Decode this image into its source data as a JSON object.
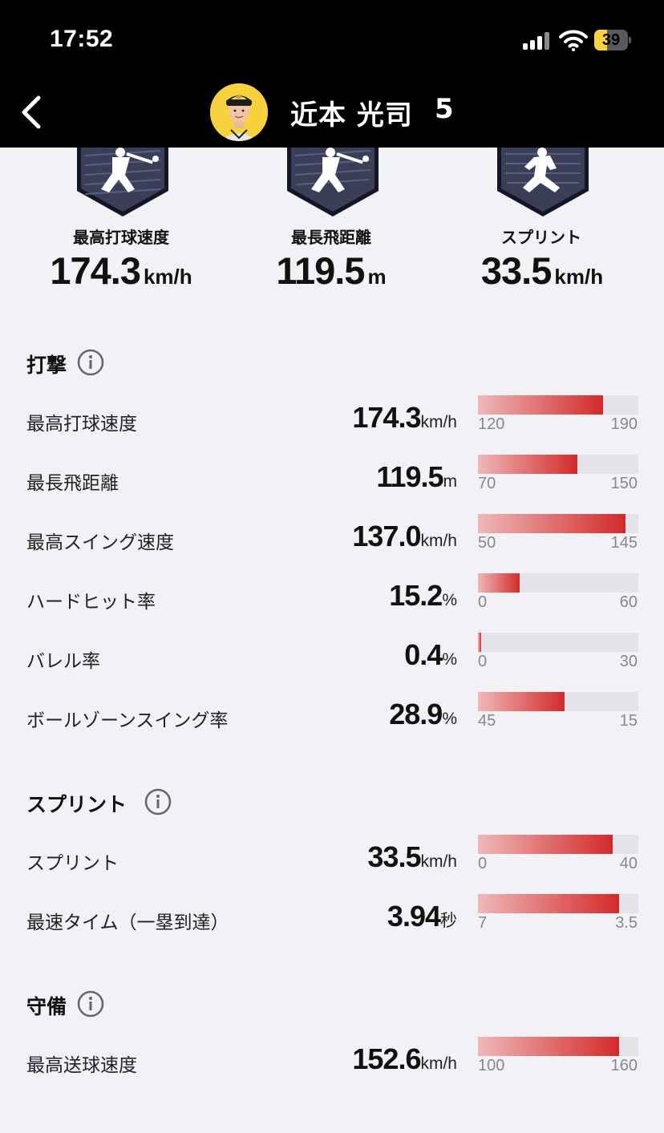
{
  "status_bar": {
    "time": "17:52",
    "battery": "39",
    "battery_level": 0.39
  },
  "header": {
    "back_icon": "chevron-left-icon",
    "player_name": "近本 光司",
    "player_number": "5"
  },
  "highlights": [
    {
      "label": "最高打球速度",
      "value": "174.3",
      "unit": "km/h",
      "icon": "batter-swing-badge"
    },
    {
      "label": "最長飛距離",
      "value": "119.5",
      "unit": "m",
      "icon": "batter-swing-badge"
    },
    {
      "label": "スプリント",
      "value": "33.5",
      "unit": "km/h",
      "icon": "runner-badge"
    }
  ],
  "sections": {
    "batting": {
      "title": "打撃",
      "rows": [
        {
          "label": "最高打球速度",
          "value": "174.3",
          "unit": "km/h",
          "min": "120",
          "max": "190",
          "fill": 0.78
        },
        {
          "label": "最長飛距離",
          "value": "119.5",
          "unit": "m",
          "min": "70",
          "max": "150",
          "fill": 0.62
        },
        {
          "label": "最高スイング速度",
          "value": "137.0",
          "unit": "km/h",
          "min": "50",
          "max": "145",
          "fill": 0.92
        },
        {
          "label": "ハードヒット率",
          "value": "15.2",
          "unit": "%",
          "min": "0",
          "max": "60",
          "fill": 0.26
        },
        {
          "label": "バレル率",
          "value": "0.4",
          "unit": "%",
          "min": "0",
          "max": "30",
          "fill": 0.02
        },
        {
          "label": "ボールゾーンスイング率",
          "value": "28.9",
          "unit": "%",
          "min": "45",
          "max": "15",
          "fill": 0.54
        }
      ]
    },
    "sprint": {
      "title": "スプリント",
      "rows": [
        {
          "label": "スプリント",
          "value": "33.5",
          "unit": "km/h",
          "min": "0",
          "max": "40",
          "fill": 0.84
        },
        {
          "label": "最速タイム（一塁到達）",
          "value": "3.94",
          "unit": "秒",
          "min": "7",
          "max": "3.5",
          "fill": 0.88
        }
      ]
    },
    "defense": {
      "title": "守備",
      "rows": [
        {
          "label": "最高送球速度",
          "value": "152.6",
          "unit": "km/h",
          "min": "100",
          "max": "160",
          "fill": 0.88
        }
      ]
    }
  },
  "colors": {
    "bar_start": "#efb8b8",
    "bar_end": "#d32a2a",
    "badge": "#3b3e58",
    "accent_yellow": "#f7d23c"
  }
}
